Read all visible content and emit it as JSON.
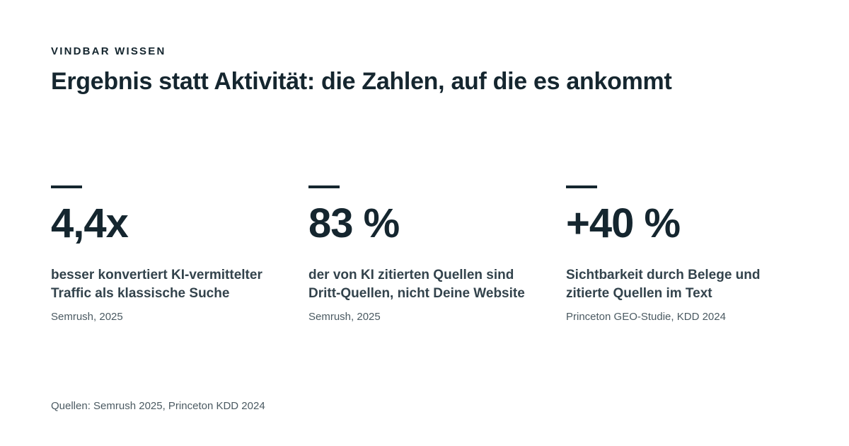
{
  "header": {
    "eyebrow": "VINDBAR WISSEN",
    "title": "Ergebnis statt Aktivität: die Zahlen, auf die es ankommt"
  },
  "stats": [
    {
      "value": "4,4x",
      "description": "besser konvertiert KI-vermittelter Traffic als klassische Suche",
      "source": "Semrush, 2025"
    },
    {
      "value": "83 %",
      "description": "der von KI zitierten Quellen sind Dritt-Quellen, nicht Deine Website",
      "source": "Semrush, 2025"
    },
    {
      "value": "+40 %",
      "description": "Sichtbarkeit durch Belege und zitierte Quellen im Text",
      "source": "Princeton GEO-Studie, KDD 2024"
    }
  ],
  "footer": {
    "sources": "Quellen: Semrush 2025, Princeton KDD 2024"
  }
}
